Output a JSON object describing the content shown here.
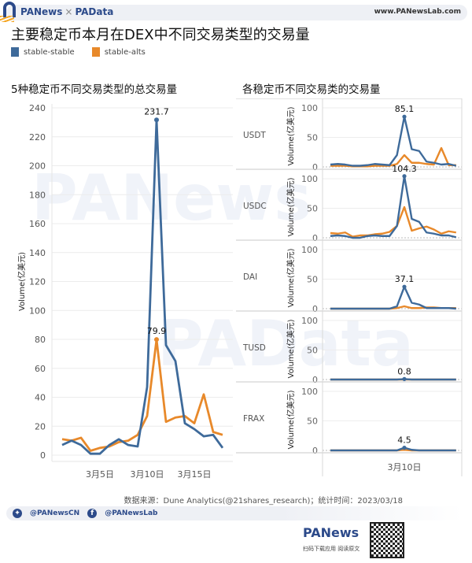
{
  "header": {
    "brand_left": "PANews",
    "brand_sep": "×",
    "brand_right": "PAData",
    "site": "www.PANewsLab.com"
  },
  "title": "主要稳定币本月在DEX中不同交易类型的交易量",
  "legend": [
    {
      "label": "stable-stable",
      "color": "#3e6a9a"
    },
    {
      "label": "stable-alts",
      "color": "#e8892a"
    }
  ],
  "left_panel": {
    "title": "5种稳定币不同交易类型的总交易量"
  },
  "right_panel": {
    "title": "各稳定币不同交易类的交易量"
  },
  "footer": {
    "source": "数据来源：Dune Analytics(@21shares_research)；统计时间：2023/03/18",
    "twitter": "@PANewsCN",
    "facebook": "@PANewsLab",
    "logo": "PANews",
    "tagline": "扫码下载应用 阅读原文"
  },
  "chart_data": [
    {
      "type": "line",
      "title": "5种稳定币不同交易类型的总交易量",
      "xlabel": "",
      "ylabel": "Volume(亿美元)",
      "ylim": [
        0,
        240
      ],
      "yticks": [
        0,
        20,
        40,
        60,
        80,
        100,
        120,
        140,
        160,
        180,
        200,
        220,
        240
      ],
      "xtick_labels": [
        "3月5日",
        "3月10日",
        "3月15日"
      ],
      "x": [
        "3/1",
        "3/2",
        "3/3",
        "3/4",
        "3/5",
        "3/6",
        "3/7",
        "3/8",
        "3/9",
        "3/10",
        "3/11",
        "3/12",
        "3/13",
        "3/14",
        "3/15",
        "3/16",
        "3/17",
        "3/18"
      ],
      "series": [
        {
          "name": "stable-stable",
          "values": [
            7,
            10,
            7,
            1,
            1,
            7,
            11,
            7,
            6,
            47,
            231.7,
            76,
            65,
            22,
            18,
            13,
            14,
            5
          ]
        },
        {
          "name": "stable-alts",
          "values": [
            11,
            10,
            12,
            3,
            5,
            6,
            9,
            10,
            14,
            27,
            79.9,
            23,
            26,
            27,
            22,
            42,
            16,
            14
          ]
        }
      ],
      "annotations": [
        "231.7",
        "79.9"
      ],
      "grid": true
    },
    {
      "type": "line",
      "title": "各稳定币不同交易类的交易量",
      "ylabel": "Volume(亿美元)",
      "ylim": [
        0,
        100
      ],
      "yticks": [
        0,
        50,
        100
      ],
      "xtick_labels": [
        "3月10日"
      ],
      "panels": [
        {
          "name": "USDT",
          "annotation": "85.1",
          "series": [
            {
              "name": "stable-stable",
              "values": [
                4,
                5,
                4,
                2,
                2,
                3,
                5,
                4,
                3,
                20,
                85.1,
                30,
                27,
                9,
                7,
                4,
                5,
                2
              ]
            },
            {
              "name": "stable-alts",
              "values": [
                2,
                2,
                2,
                1,
                1,
                1,
                2,
                2,
                2,
                5,
                20,
                7,
                7,
                5,
                4,
                32,
                3,
                3
              ]
            }
          ]
        },
        {
          "name": "USDC",
          "annotation": "104.3",
          "series": [
            {
              "name": "stable-stable",
              "values": [
                3,
                4,
                3,
                0,
                0,
                3,
                4,
                3,
                3,
                20,
                104.3,
                32,
                27,
                9,
                7,
                4,
                4,
                1
              ]
            },
            {
              "name": "stable-alts",
              "values": [
                8,
                7,
                9,
                2,
                4,
                4,
                6,
                7,
                10,
                20,
                52,
                12,
                16,
                19,
                14,
                7,
                11,
                9
              ]
            }
          ]
        },
        {
          "name": "DAI",
          "annotation": "37.1",
          "series": [
            {
              "name": "stable-stable",
              "values": [
                0,
                0,
                0,
                0,
                0,
                0,
                0,
                0,
                0,
                4,
                37.1,
                10,
                7,
                1,
                1,
                1,
                1,
                0
              ]
            },
            {
              "name": "stable-alts",
              "values": [
                0,
                0,
                0,
                0,
                0,
                0,
                0,
                0,
                0,
                1,
                4,
                1,
                1,
                2,
                2,
                1,
                1,
                1
              ]
            }
          ]
        },
        {
          "name": "TUSD",
          "annotation": "0.8",
          "series": [
            {
              "name": "stable-stable",
              "values": [
                0,
                0,
                0,
                0,
                0,
                0,
                0,
                0,
                0,
                0,
                0.8,
                0,
                0,
                0,
                0,
                0,
                0,
                0
              ]
            },
            {
              "name": "stable-alts",
              "values": [
                0,
                0,
                0,
                0,
                0,
                0,
                0,
                0,
                0,
                0,
                0,
                0,
                0,
                0,
                0,
                0,
                0,
                0
              ]
            }
          ]
        },
        {
          "name": "FRAX",
          "annotation": "4.5",
          "series": [
            {
              "name": "stable-stable",
              "values": [
                0,
                0,
                0,
                0,
                0,
                0,
                0,
                0,
                0,
                0,
                4.5,
                1,
                0,
                0,
                0,
                0,
                0,
                0
              ]
            },
            {
              "name": "stable-alts",
              "values": [
                0,
                0,
                0,
                0,
                0,
                0,
                0,
                0,
                0,
                0,
                1,
                0,
                0,
                0,
                0,
                0,
                0,
                0
              ]
            }
          ]
        }
      ]
    }
  ]
}
